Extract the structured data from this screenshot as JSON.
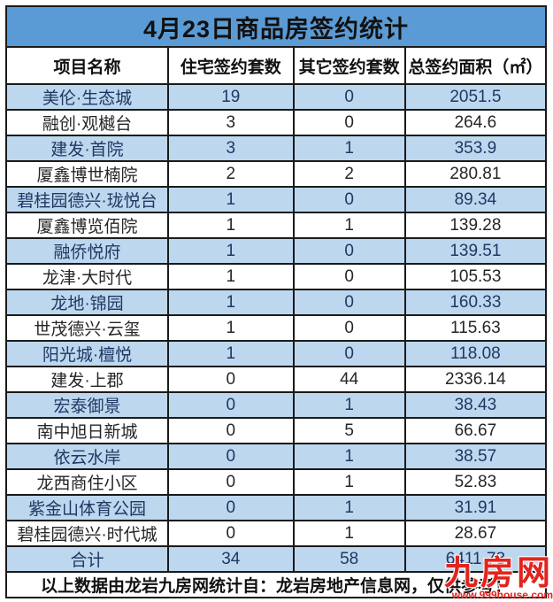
{
  "title": "4月23日商品房签约统计",
  "table": {
    "headers": [
      "项目名称",
      "住宅签约套数",
      "其它签约套数",
      "总签约面积（㎡）"
    ],
    "rows": [
      [
        "美伦·生态城",
        "19",
        "0",
        "2051.5"
      ],
      [
        "融创·观樾台",
        "3",
        "0",
        "264.6"
      ],
      [
        "建发·首院",
        "3",
        "1",
        "353.9"
      ],
      [
        "厦鑫博世楠院",
        "2",
        "2",
        "280.81"
      ],
      [
        "碧桂园德兴·珑悦台",
        "1",
        "0",
        "89.34"
      ],
      [
        "厦鑫博览佰院",
        "1",
        "1",
        "139.28"
      ],
      [
        "融侨悦府",
        "1",
        "0",
        "139.51"
      ],
      [
        "龙津·大时代",
        "1",
        "0",
        "105.53"
      ],
      [
        "龙地·锦园",
        "1",
        "0",
        "160.33"
      ],
      [
        "世茂德兴·云玺",
        "1",
        "0",
        "115.63"
      ],
      [
        "阳光城·檀悦",
        "1",
        "0",
        "118.08"
      ],
      [
        "建发·上郡",
        "0",
        "44",
        "2336.14"
      ],
      [
        "宏泰御景",
        "0",
        "1",
        "38.43"
      ],
      [
        "南中旭日新城",
        "0",
        "5",
        "66.67"
      ],
      [
        "依云水岸",
        "0",
        "1",
        "38.57"
      ],
      [
        "龙西商住小区",
        "0",
        "1",
        "52.83"
      ],
      [
        "紫金山体育公园",
        "0",
        "1",
        "31.91"
      ],
      [
        "碧桂园德兴·时代城",
        "0",
        "1",
        "28.67"
      ]
    ],
    "total": [
      "合计",
      "34",
      "58",
      "6411.73"
    ]
  },
  "footer_note": "以上数据由龙岩九房网统计自：龙岩房地产信息网，仅供参考！",
  "watermark": {
    "logo": "九房网",
    "url": "www.999house.com"
  },
  "colors": {
    "title_bg": "#5b9bd5",
    "alt_row_bg": "#bdd7ee",
    "border": "#1a1a1a",
    "alt_row_text": "#1f3864",
    "row_text": "#262626",
    "watermark_red": "#e4231d"
  },
  "chart_data": {
    "type": "table",
    "title": "4月23日商品房签约统计",
    "columns": [
      "项目名称",
      "住宅签约套数",
      "其它签约套数",
      "总签约面积（㎡）"
    ],
    "categories": [
      "美伦·生态城",
      "融创·观樾台",
      "建发·首院",
      "厦鑫博世楠院",
      "碧桂园德兴·珑悦台",
      "厦鑫博览佰院",
      "融侨悦府",
      "龙津·大时代",
      "龙地·锦园",
      "世茂德兴·云玺",
      "阳光城·檀悦",
      "建发·上郡",
      "宏泰御景",
      "南中旭日新城",
      "依云水岸",
      "龙西商住小区",
      "紫金山体育公园",
      "碧桂园德兴·时代城"
    ],
    "series": [
      {
        "name": "住宅签约套数",
        "values": [
          19,
          3,
          3,
          2,
          1,
          1,
          1,
          1,
          1,
          1,
          1,
          0,
          0,
          0,
          0,
          0,
          0,
          0
        ]
      },
      {
        "name": "其它签约套数",
        "values": [
          0,
          0,
          1,
          2,
          0,
          1,
          0,
          0,
          0,
          0,
          0,
          44,
          1,
          5,
          1,
          1,
          1,
          1
        ]
      },
      {
        "name": "总签约面积（㎡）",
        "values": [
          2051.5,
          264.6,
          353.9,
          280.81,
          89.34,
          139.28,
          139.51,
          105.53,
          160.33,
          115.63,
          118.08,
          2336.14,
          38.43,
          66.67,
          38.57,
          52.83,
          31.91,
          28.67
        ]
      }
    ],
    "totals": {
      "住宅签约套数": 34,
      "其它签约套数": 58,
      "总签约面积（㎡）": 6411.73
    },
    "footnote": "以上数据由龙岩九房网统计自：龙岩房地产信息网，仅供参考！"
  }
}
